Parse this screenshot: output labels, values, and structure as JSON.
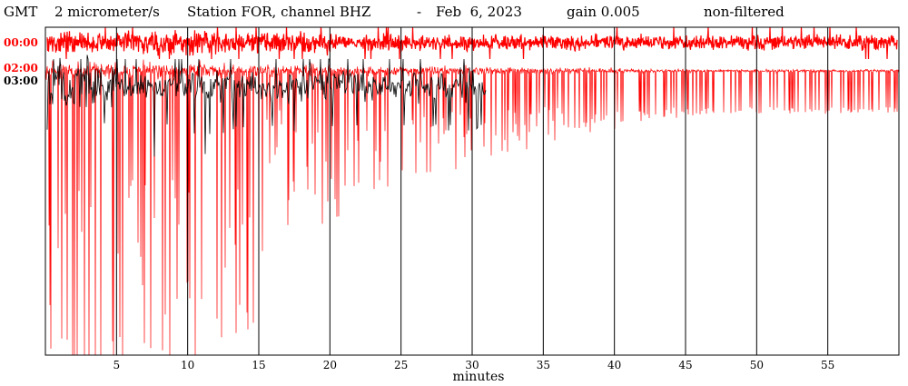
{
  "header": {
    "tz": "GMT",
    "units": "2 micrometer/s",
    "station": "Station FOR, channel BHZ",
    "sep": "-",
    "date": "Feb  6, 2023",
    "gain": "gain 0.005",
    "filter": "non-filtered"
  },
  "colors": {
    "trace_a": "#ff0000",
    "trace_b": "#000000",
    "label_red": "#ff0000",
    "label_black": "#000000",
    "grid": "#000000"
  },
  "chart_data": {
    "type": "line",
    "title": "GMT 2 micrometer/s Station FOR, channel BHZ - Feb 6, 2023 gain 0.005 non-filtered",
    "xlabel": "minutes",
    "ylabel": "",
    "xlim": [
      0,
      60
    ],
    "x_ticks": [
      5,
      10,
      15,
      20,
      25,
      30,
      35,
      40,
      45,
      50,
      55
    ],
    "x_tick_labels": [
      "5",
      "10",
      "15",
      "20",
      "25",
      "30",
      "35",
      "40",
      "45",
      "50",
      "55"
    ],
    "vertical_gridlines": true,
    "series": [
      {
        "label": "00:00",
        "color": "#ff0000",
        "extent_minutes": [
          0,
          60
        ],
        "note_style": "heavy clipped trace"
      },
      {
        "label": "02:00",
        "color": "#ff0000",
        "extent_minutes": [
          0,
          60
        ]
      },
      {
        "label": "03:00",
        "color": "#000000",
        "extent_minutes": [
          0,
          31
        ]
      }
    ]
  }
}
